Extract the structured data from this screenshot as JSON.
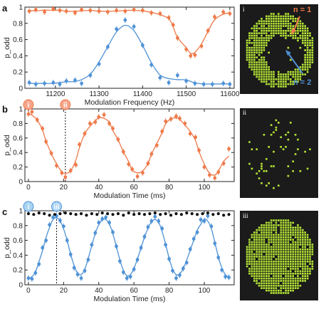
{
  "colors": {
    "orange": "#ee7a4a",
    "blue": "#4f92d6",
    "black": "#111111",
    "pixel": "#b6e636",
    "imgbg": "#1b1b1b"
  },
  "chart_data": [
    {
      "panel": "a",
      "type": "scatter",
      "xlabel": "Modulation Frequency (Hz)",
      "ylabel": "p_odd",
      "xlim": [
        11130,
        11610
      ],
      "ylim": [
        0,
        1.0
      ],
      "xticks": [
        "11200",
        "11300",
        "11400",
        "11500",
        "11600"
      ],
      "yticks": [
        "0",
        "0.2",
        "0.4",
        "0.6",
        "0.8",
        "1"
      ],
      "series": [
        {
          "color": "orange",
          "x": [
            11140,
            11155,
            11175,
            11195,
            11210,
            11225,
            11245,
            11260,
            11280,
            11300,
            11320,
            11340,
            11360,
            11380,
            11400,
            11420,
            11440,
            11460,
            11470,
            11480,
            11500,
            11510,
            11520,
            11535,
            11550,
            11565,
            11585,
            11600
          ],
          "y": [
            0.95,
            0.97,
            0.94,
            0.98,
            0.96,
            0.95,
            0.93,
            0.97,
            0.96,
            0.95,
            0.94,
            0.96,
            0.95,
            0.97,
            0.96,
            0.93,
            0.92,
            0.87,
            0.78,
            0.62,
            0.48,
            0.4,
            0.41,
            0.52,
            0.71,
            0.88,
            0.94,
            0.92
          ]
        },
        {
          "color": "blue",
          "x": [
            11140,
            11155,
            11175,
            11195,
            11210,
            11225,
            11245,
            11260,
            11280,
            11300,
            11320,
            11340,
            11360,
            11380,
            11400,
            11420,
            11440,
            11460,
            11480,
            11500,
            11520,
            11540,
            11560,
            11585,
            11600
          ],
          "y": [
            0.07,
            0.05,
            0.06,
            0.07,
            0.05,
            0.09,
            0.1,
            0.06,
            0.16,
            0.3,
            0.51,
            0.73,
            0.84,
            0.76,
            0.53,
            0.29,
            0.13,
            0.07,
            0.16,
            0.09,
            0.06,
            0.05,
            0.05,
            0.06,
            0.05
          ]
        }
      ]
    },
    {
      "panel": "b",
      "type": "scatter",
      "xlabel": "Modulation Time (ms)",
      "ylabel": "p_odd",
      "xlim": [
        -2,
        117
      ],
      "ylim": [
        0,
        1.0
      ],
      "xticks": [
        "0",
        "20",
        "40",
        "60",
        "80",
        "100"
      ],
      "yticks": [
        "0",
        "0.2",
        "0.4",
        "0.6",
        "0.8",
        "1"
      ],
      "series": [
        {
          "color": "orange",
          "x": [
            0,
            2,
            5,
            8,
            10,
            13,
            16,
            19,
            21,
            24,
            27,
            29,
            32,
            35,
            38,
            40,
            43,
            46,
            48,
            51,
            54,
            57,
            59,
            62,
            65,
            68,
            70,
            73,
            76,
            78,
            81,
            84,
            86,
            89,
            92,
            95,
            97,
            100,
            103,
            106,
            108,
            111,
            114
          ],
          "y": [
            0.93,
            0.96,
            0.85,
            0.73,
            0.55,
            0.39,
            0.22,
            0.12,
            0.06,
            0.15,
            0.23,
            0.51,
            0.66,
            0.8,
            0.82,
            0.89,
            0.92,
            0.8,
            0.73,
            0.58,
            0.41,
            0.24,
            0.17,
            0.07,
            0.12,
            0.25,
            0.38,
            0.5,
            0.69,
            0.83,
            0.86,
            0.9,
            0.87,
            0.8,
            0.66,
            0.61,
            0.43,
            0.2,
            0.09,
            0.05,
            0.13,
            0.25,
            0.45
          ]
        }
      ],
      "markers": [
        {
          "label": "i",
          "x": 0
        },
        {
          "label": "ii",
          "x": 21
        }
      ]
    },
    {
      "panel": "c",
      "type": "scatter",
      "xlabel": "Modulation Time (ms)",
      "ylabel": "p_odd",
      "xlim": [
        -2,
        117
      ],
      "ylim": [
        0,
        1.0
      ],
      "xticks": [
        "0",
        "20",
        "40",
        "60",
        "80",
        "100"
      ],
      "yticks": [
        "0",
        "0.2",
        "0.4",
        "0.6",
        "0.8",
        "1"
      ],
      "series": [
        {
          "color": "blue",
          "x": [
            0,
            2,
            4,
            6,
            8,
            10,
            12,
            14,
            16,
            18,
            20,
            22,
            24,
            26,
            28,
            30,
            32,
            34,
            36,
            38,
            40,
            42,
            44,
            46,
            48,
            50,
            52,
            54,
            56,
            58,
            60,
            62,
            64,
            66,
            68,
            70,
            72,
            74,
            76,
            78,
            80,
            82,
            84,
            86,
            88,
            90,
            92,
            94,
            96,
            98,
            100,
            102,
            104,
            106,
            108,
            110,
            112,
            114
          ],
          "y": [
            0.09,
            0.08,
            0.16,
            0.28,
            0.5,
            0.6,
            0.81,
            0.91,
            0.93,
            0.87,
            0.79,
            0.6,
            0.41,
            0.23,
            0.14,
            0.09,
            0.19,
            0.34,
            0.54,
            0.7,
            0.84,
            0.89,
            0.91,
            0.84,
            0.71,
            0.52,
            0.32,
            0.17,
            0.09,
            0.11,
            0.21,
            0.34,
            0.5,
            0.65,
            0.78,
            0.86,
            0.92,
            0.86,
            0.76,
            0.54,
            0.35,
            0.19,
            0.09,
            0.13,
            0.22,
            0.3,
            0.48,
            0.62,
            0.71,
            0.88,
            0.86,
            0.93,
            0.79,
            0.56,
            0.37,
            0.2,
            0.11,
            0.1
          ]
        },
        {
          "color": "black",
          "x": [
            0,
            3,
            6,
            9,
            12,
            15,
            18,
            21,
            24,
            27,
            30,
            33,
            36,
            39,
            42,
            45,
            48,
            51,
            54,
            57,
            60,
            63,
            66,
            69,
            72,
            75,
            78,
            81,
            84,
            87,
            90,
            93,
            96,
            99,
            102,
            105,
            108,
            111,
            114
          ],
          "y": [
            0.96,
            0.95,
            0.97,
            0.96,
            0.94,
            0.95,
            0.96,
            0.97,
            0.96,
            0.95,
            0.96,
            0.94,
            0.96,
            0.95,
            0.97,
            0.96,
            0.95,
            0.96,
            0.94,
            0.97,
            0.95,
            0.96,
            0.95,
            0.96,
            0.97,
            0.95,
            0.96,
            0.94,
            0.96,
            0.95,
            0.97,
            0.96,
            0.95,
            0.96,
            0.97,
            0.95,
            0.96,
            0.94,
            0.95
          ]
        }
      ],
      "markers": [
        {
          "label": "i",
          "x": 0
        },
        {
          "label": "iii",
          "x": 16
        }
      ]
    }
  ],
  "panels": {
    "a": "a",
    "b": "b",
    "c": "c"
  },
  "images": {
    "i": "i",
    "ii": "ii",
    "iii": "iii"
  },
  "annotations": {
    "n1": "n = 1",
    "n2": "n = 2"
  }
}
